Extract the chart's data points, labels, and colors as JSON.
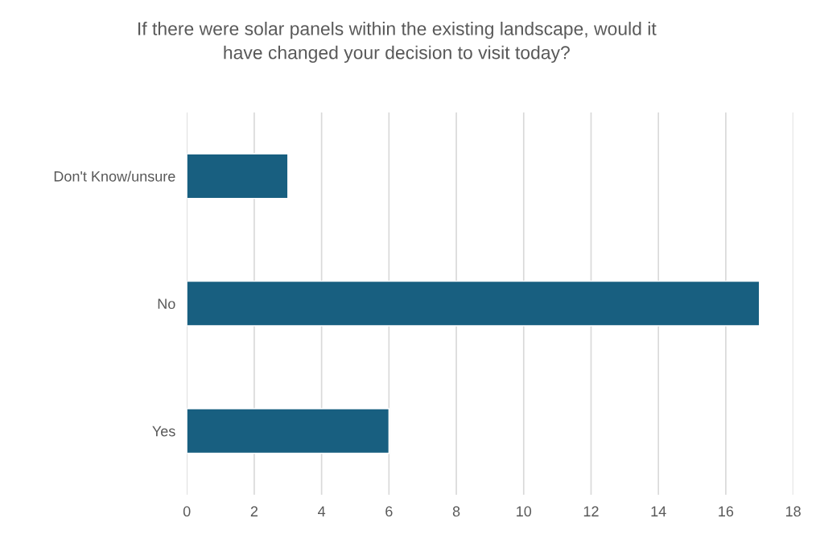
{
  "chart_data": {
    "type": "bar",
    "orientation": "horizontal",
    "title": "If there were solar panels within the existing landscape, would it\nhave changed your decision to visit today?",
    "categories": [
      "Don't Know/unsure",
      "No",
      "Yes"
    ],
    "values": [
      3,
      17,
      6
    ],
    "color": "#185f80",
    "xlim": [
      0,
      18
    ],
    "xticks": [
      0,
      2,
      4,
      6,
      8,
      10,
      12,
      14,
      16,
      18
    ],
    "grid": "x"
  }
}
